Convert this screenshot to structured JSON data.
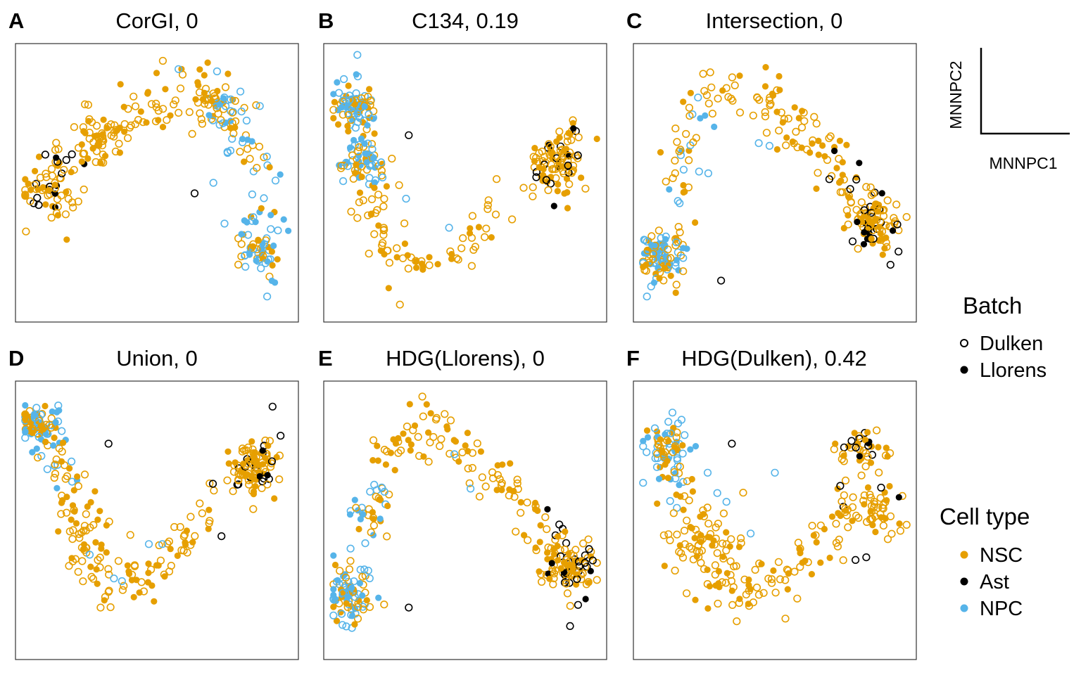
{
  "legend": {
    "axes": {
      "xlabel": "MNNPC1",
      "ylabel": "MNNPC2"
    },
    "batch": {
      "title": "Batch",
      "items": [
        {
          "label": "Dulken",
          "marker": "open-circle"
        },
        {
          "label": "Llorens",
          "marker": "filled-circle"
        }
      ]
    },
    "celltype": {
      "title": "Cell type",
      "items": [
        {
          "label": "NSC",
          "color": "#E69F00"
        },
        {
          "label": "Ast",
          "color": "#000000"
        },
        {
          "label": "NPC",
          "color": "#56B4E9"
        }
      ]
    }
  },
  "chart_data": [
    {
      "type": "scatter",
      "panel": "A",
      "title": "CorGI, 0",
      "xlabel": "MNNPC1",
      "ylabel": "MNNPC2",
      "grid": false,
      "xlim": [
        0,
        100
      ],
      "ylim": [
        0,
        100
      ],
      "description_shape": "left cluster, arch rising to top middle, descending arm on right",
      "path": [
        [
          9,
          47
        ],
        [
          12,
          52
        ],
        [
          20,
          62
        ],
        [
          30,
          70
        ],
        [
          42,
          75
        ],
        [
          56,
          83
        ],
        [
          68,
          85
        ],
        [
          78,
          78
        ],
        [
          84,
          65
        ],
        [
          88,
          50
        ],
        [
          88,
          32
        ],
        [
          88,
          15
        ]
      ],
      "clusters": [
        [
          10,
          46,
          5
        ],
        [
          28,
          66,
          4
        ],
        [
          72,
          78,
          4
        ],
        [
          88,
          25,
          4
        ]
      ],
      "n_points": 330,
      "npc_from": 0.55,
      "ast_to": 0.2,
      "extra_points": [
        {
          "x": 64,
          "y": 46,
          "cell_type": "Ast",
          "batch": "Dulken"
        },
        {
          "x": 71,
          "y": 50,
          "cell_type": "NPC",
          "batch": "Dulken"
        },
        {
          "x": 58,
          "y": 93,
          "cell_type": "NPC",
          "batch": "Dulken"
        },
        {
          "x": 95,
          "y": 32,
          "cell_type": "NPC",
          "batch": "Dulken"
        },
        {
          "x": 91,
          "y": 7,
          "cell_type": "NPC",
          "batch": "Dulken"
        }
      ]
    },
    {
      "type": "scatter",
      "panel": "B",
      "title": "C134, 0.19",
      "xlabel": "MNNPC1",
      "ylabel": "MNNPC2",
      "grid": false,
      "xlim": [
        0,
        100
      ],
      "ylim": [
        0,
        100
      ],
      "description_shape": "NPC band top-left, U shape down to bottom, rising to cluster at right",
      "path": [
        [
          8,
          92
        ],
        [
          9,
          80
        ],
        [
          11,
          65
        ],
        [
          13,
          52
        ],
        [
          15,
          38
        ],
        [
          20,
          25
        ],
        [
          30,
          16
        ],
        [
          42,
          20
        ],
        [
          55,
          30
        ],
        [
          68,
          40
        ],
        [
          78,
          52
        ],
        [
          86,
          62
        ],
        [
          92,
          72
        ]
      ],
      "clusters": [
        [
          9,
          78,
          4
        ],
        [
          13,
          58,
          4
        ],
        [
          84,
          57,
          5
        ]
      ],
      "n_points": 330,
      "npc_from": 0.0,
      "npc_to": 0.25,
      "ast_from": 0.8,
      "extra_points": [
        {
          "x": 29,
          "y": 68,
          "cell_type": "Ast",
          "batch": "Dulken"
        },
        {
          "x": 44,
          "y": 33,
          "cell_type": "NPC",
          "batch": "Dulken"
        },
        {
          "x": 28,
          "y": 44,
          "cell_type": "NPC",
          "batch": "Dulken"
        }
      ]
    },
    {
      "type": "scatter",
      "panel": "C",
      "title": "Intersection, 0",
      "xlabel": "MNNPC1",
      "ylabel": "MNNPC2",
      "grid": false,
      "xlim": [
        0,
        100
      ],
      "ylim": [
        0,
        100
      ],
      "description_shape": "NPC arm bottom-left, arch across top, dense cluster bottom-right",
      "path": [
        [
          5,
          8
        ],
        [
          8,
          25
        ],
        [
          12,
          45
        ],
        [
          16,
          65
        ],
        [
          22,
          80
        ],
        [
          32,
          88
        ],
        [
          45,
          82
        ],
        [
          55,
          72
        ],
        [
          66,
          63
        ],
        [
          76,
          52
        ],
        [
          84,
          40
        ],
        [
          90,
          34
        ]
      ],
      "clusters": [
        [
          8,
          22,
          4
        ],
        [
          86,
          34,
          5
        ]
      ],
      "n_points": 330,
      "npc_from": 0.0,
      "npc_to": 0.35,
      "ast_from": 0.8,
      "extra_points": [
        {
          "x": 30,
          "y": 13,
          "cell_type": "Ast",
          "batch": "Dulken"
        },
        {
          "x": 96,
          "y": 24,
          "cell_type": "Ast",
          "batch": "Dulken"
        },
        {
          "x": 93,
          "y": 19,
          "cell_type": "Ast",
          "batch": "Dulken"
        },
        {
          "x": 44,
          "y": 65,
          "cell_type": "NPC",
          "batch": "Dulken"
        },
        {
          "x": 48,
          "y": 64,
          "cell_type": "NPC",
          "batch": "Dulken"
        }
      ]
    },
    {
      "type": "scatter",
      "panel": "D",
      "title": "Union, 0",
      "xlabel": "MNNPC1",
      "ylabel": "MNNPC2",
      "grid": false,
      "xlim": [
        0,
        100
      ],
      "ylim": [
        0,
        100
      ],
      "description_shape": "NPC at top-left, descending to bottom, rising to dense cluster at right",
      "path": [
        [
          5,
          88
        ],
        [
          9,
          78
        ],
        [
          14,
          68
        ],
        [
          20,
          55
        ],
        [
          24,
          40
        ],
        [
          30,
          28
        ],
        [
          40,
          25
        ],
        [
          52,
          35
        ],
        [
          62,
          45
        ],
        [
          72,
          55
        ],
        [
          82,
          68
        ],
        [
          88,
          70
        ]
      ],
      "clusters": [
        [
          6,
          86,
          4
        ],
        [
          86,
          70,
          5
        ]
      ],
      "n_points": 330,
      "npc_from": 0.0,
      "npc_to": 0.2,
      "ast_from": 0.82,
      "extra_points": [
        {
          "x": 93,
          "y": 93,
          "cell_type": "Ast",
          "batch": "Dulken"
        },
        {
          "x": 96,
          "y": 82,
          "cell_type": "Ast",
          "batch": "Dulken"
        },
        {
          "x": 32,
          "y": 79,
          "cell_type": "Ast",
          "batch": "Dulken"
        },
        {
          "x": 74,
          "y": 44,
          "cell_type": "Ast",
          "batch": "Dulken"
        },
        {
          "x": 47,
          "y": 41,
          "cell_type": "NPC",
          "batch": "Dulken"
        },
        {
          "x": 52,
          "y": 41,
          "cell_type": "NPC",
          "batch": "Dulken"
        },
        {
          "x": 25,
          "y": 37,
          "cell_type": "NPC",
          "batch": "Dulken"
        },
        {
          "x": 34,
          "y": 28,
          "cell_type": "NPC",
          "batch": "Dulken"
        },
        {
          "x": 37,
          "y": 27,
          "cell_type": "NPC",
          "batch": "Dulken"
        }
      ]
    },
    {
      "type": "scatter",
      "panel": "E",
      "title": "HDG(Llorens), 0",
      "xlabel": "MNNPC1",
      "ylabel": "MNNPC2",
      "grid": false,
      "xlim": [
        0,
        100
      ],
      "ylim": [
        0,
        100
      ],
      "description_shape": "NPC at bottom-left, large arch across top, dense cluster bottom-right",
      "path": [
        [
          6,
          12
        ],
        [
          8,
          28
        ],
        [
          12,
          48
        ],
        [
          18,
          65
        ],
        [
          26,
          78
        ],
        [
          36,
          86
        ],
        [
          46,
          80
        ],
        [
          56,
          68
        ],
        [
          66,
          62
        ],
        [
          76,
          52
        ],
        [
          84,
          40
        ],
        [
          88,
          30
        ]
      ],
      "clusters": [
        [
          7,
          22,
          4
        ],
        [
          88,
          32,
          5
        ]
      ],
      "n_points": 330,
      "npc_from": 0.0,
      "npc_to": 0.28,
      "ast_from": 0.82,
      "extra_points": [
        {
          "x": 29,
          "y": 17,
          "cell_type": "Ast",
          "batch": "Dulken"
        },
        {
          "x": 89,
          "y": 10,
          "cell_type": "Ast",
          "batch": "Dulken"
        },
        {
          "x": 92,
          "y": 18,
          "cell_type": "Ast",
          "batch": "Dulken"
        },
        {
          "x": 46,
          "y": 75,
          "cell_type": "NPC",
          "batch": "Dulken"
        },
        {
          "x": 52,
          "y": 62,
          "cell_type": "NPC",
          "batch": "Dulken"
        }
      ]
    },
    {
      "type": "scatter",
      "panel": "F",
      "title": "HDG(Dulken), 0.42",
      "xlabel": "MNNPC1",
      "ylabel": "MNNPC2",
      "grid": false,
      "xlim": [
        0,
        100
      ],
      "ylim": [
        0,
        100
      ],
      "description_shape": "NPC cluster top-left, broad diffuse spread, NSC/Ast cluster top-right",
      "path": [
        [
          8,
          78
        ],
        [
          12,
          70
        ],
        [
          18,
          60
        ],
        [
          22,
          48
        ],
        [
          26,
          35
        ],
        [
          32,
          25
        ],
        [
          42,
          22
        ],
        [
          55,
          30
        ],
        [
          68,
          42
        ],
        [
          80,
          55
        ],
        [
          85,
          70
        ],
        [
          88,
          78
        ]
      ],
      "clusters": [
        [
          9,
          78,
          4
        ],
        [
          82,
          78,
          5
        ],
        [
          90,
          52,
          5
        ],
        [
          24,
          40,
          8
        ]
      ],
      "n_points": 340,
      "npc_from": 0.0,
      "npc_to": 0.2,
      "ast_from": 0.84,
      "extra_points": [
        {
          "x": 34,
          "y": 79,
          "cell_type": "Ast",
          "batch": "Dulken"
        },
        {
          "x": 80,
          "y": 35,
          "cell_type": "Ast",
          "batch": "Dulken"
        },
        {
          "x": 84,
          "y": 36,
          "cell_type": "Ast",
          "batch": "Dulken"
        },
        {
          "x": 25,
          "y": 68,
          "cell_type": "NPC",
          "batch": "Dulken"
        },
        {
          "x": 50,
          "y": 68,
          "cell_type": "NPC",
          "batch": "Dulken"
        },
        {
          "x": 41,
          "y": 45,
          "cell_type": "NPC",
          "batch": "Dulken"
        },
        {
          "x": 32,
          "y": 57,
          "cell_type": "NPC",
          "batch": "Dulken"
        }
      ]
    }
  ]
}
